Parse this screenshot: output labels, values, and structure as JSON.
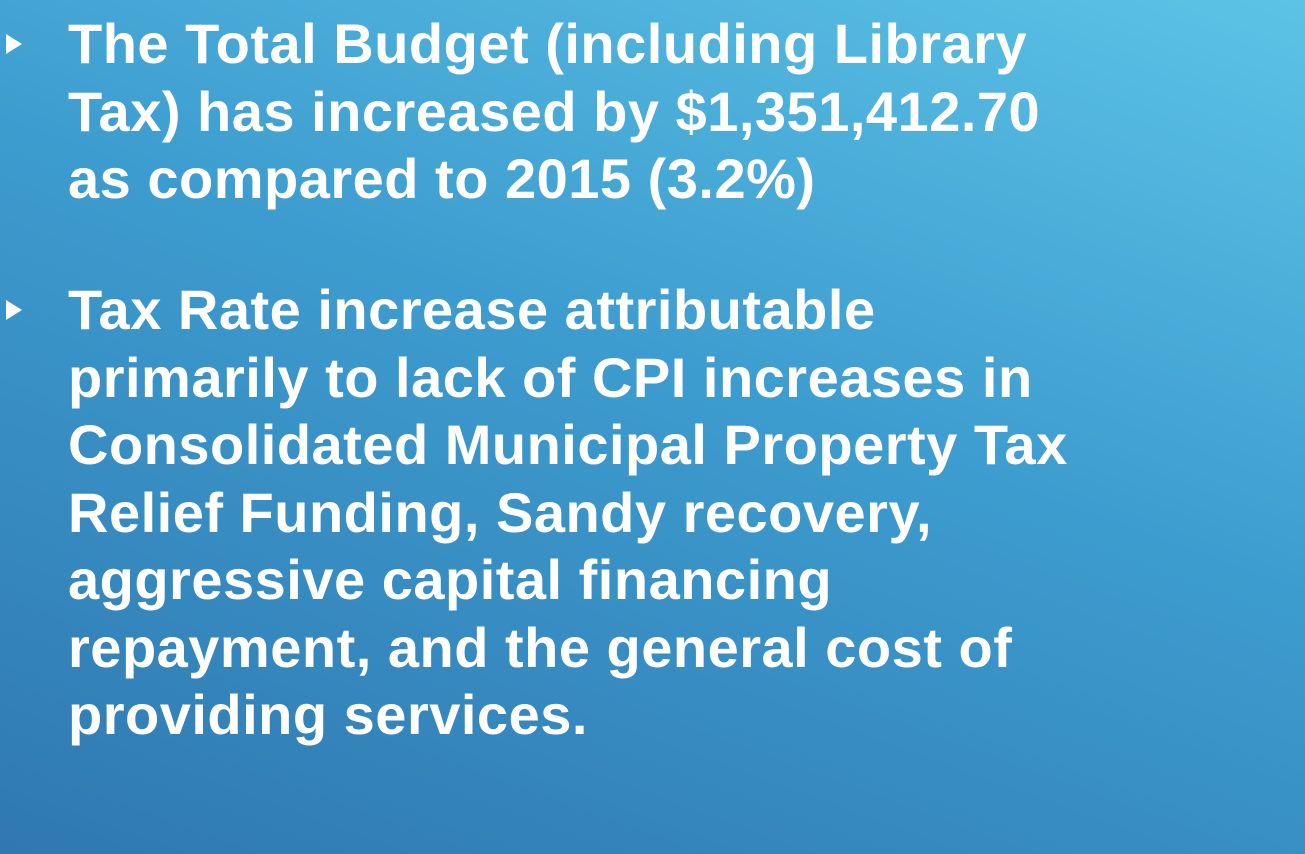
{
  "bullets": [
    {
      "lines": [
        "The Total Budget (including Library",
        "Tax) has increased by $1,351,412.70",
        "as compared to 2015 (3.2%)"
      ]
    },
    {
      "lines": [
        "Tax Rate increase attributable",
        "primarily to lack of CPI increases in",
        "Consolidated Municipal Property Tax",
        "Relief Funding, Sandy recovery,",
        "aggressive capital financing",
        "repayment, and the general cost of",
        "providing services."
      ]
    }
  ]
}
